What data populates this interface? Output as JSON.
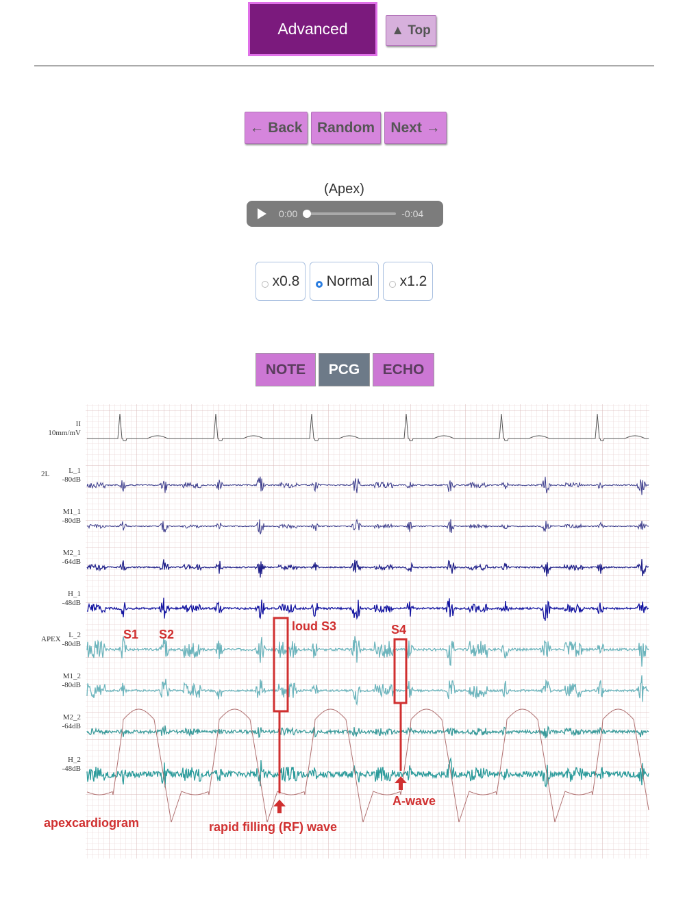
{
  "header": {
    "advanced": "Advanced",
    "top": "▲ Top"
  },
  "nav": {
    "back": "← Back",
    "random": "Random",
    "next": "Next →"
  },
  "audio": {
    "label": "(Apex)",
    "current": "0:00",
    "remaining": "-0:04"
  },
  "speed": {
    "options": [
      "x0.8",
      "Normal",
      "x1.2"
    ],
    "selected": "Normal"
  },
  "tabs": {
    "items": [
      "NOTE",
      "PCG",
      "ECHO"
    ],
    "active": "PCG"
  },
  "figure": {
    "groups": [
      "2L",
      "APEX"
    ],
    "leads": [
      {
        "name": "II",
        "gain": "10mm/mV"
      },
      {
        "name": "L_1",
        "gain": "-80dB"
      },
      {
        "name": "M1_1",
        "gain": "-80dB"
      },
      {
        "name": "M2_1",
        "gain": "-64dB"
      },
      {
        "name": "H_1",
        "gain": "-48dB"
      },
      {
        "name": "L_2",
        "gain": "-80dB"
      },
      {
        "name": "M1_2",
        "gain": "-80dB"
      },
      {
        "name": "M2_2",
        "gain": "-64dB"
      },
      {
        "name": "H_2",
        "gain": "-48dB"
      }
    ],
    "annotations": {
      "s1": "S1",
      "s2": "S2",
      "s3": "loud S3",
      "s4": "S4",
      "apex": "apexcardiogram",
      "rf": "rapid filling (RF) wave",
      "awave": "A-wave"
    }
  }
}
